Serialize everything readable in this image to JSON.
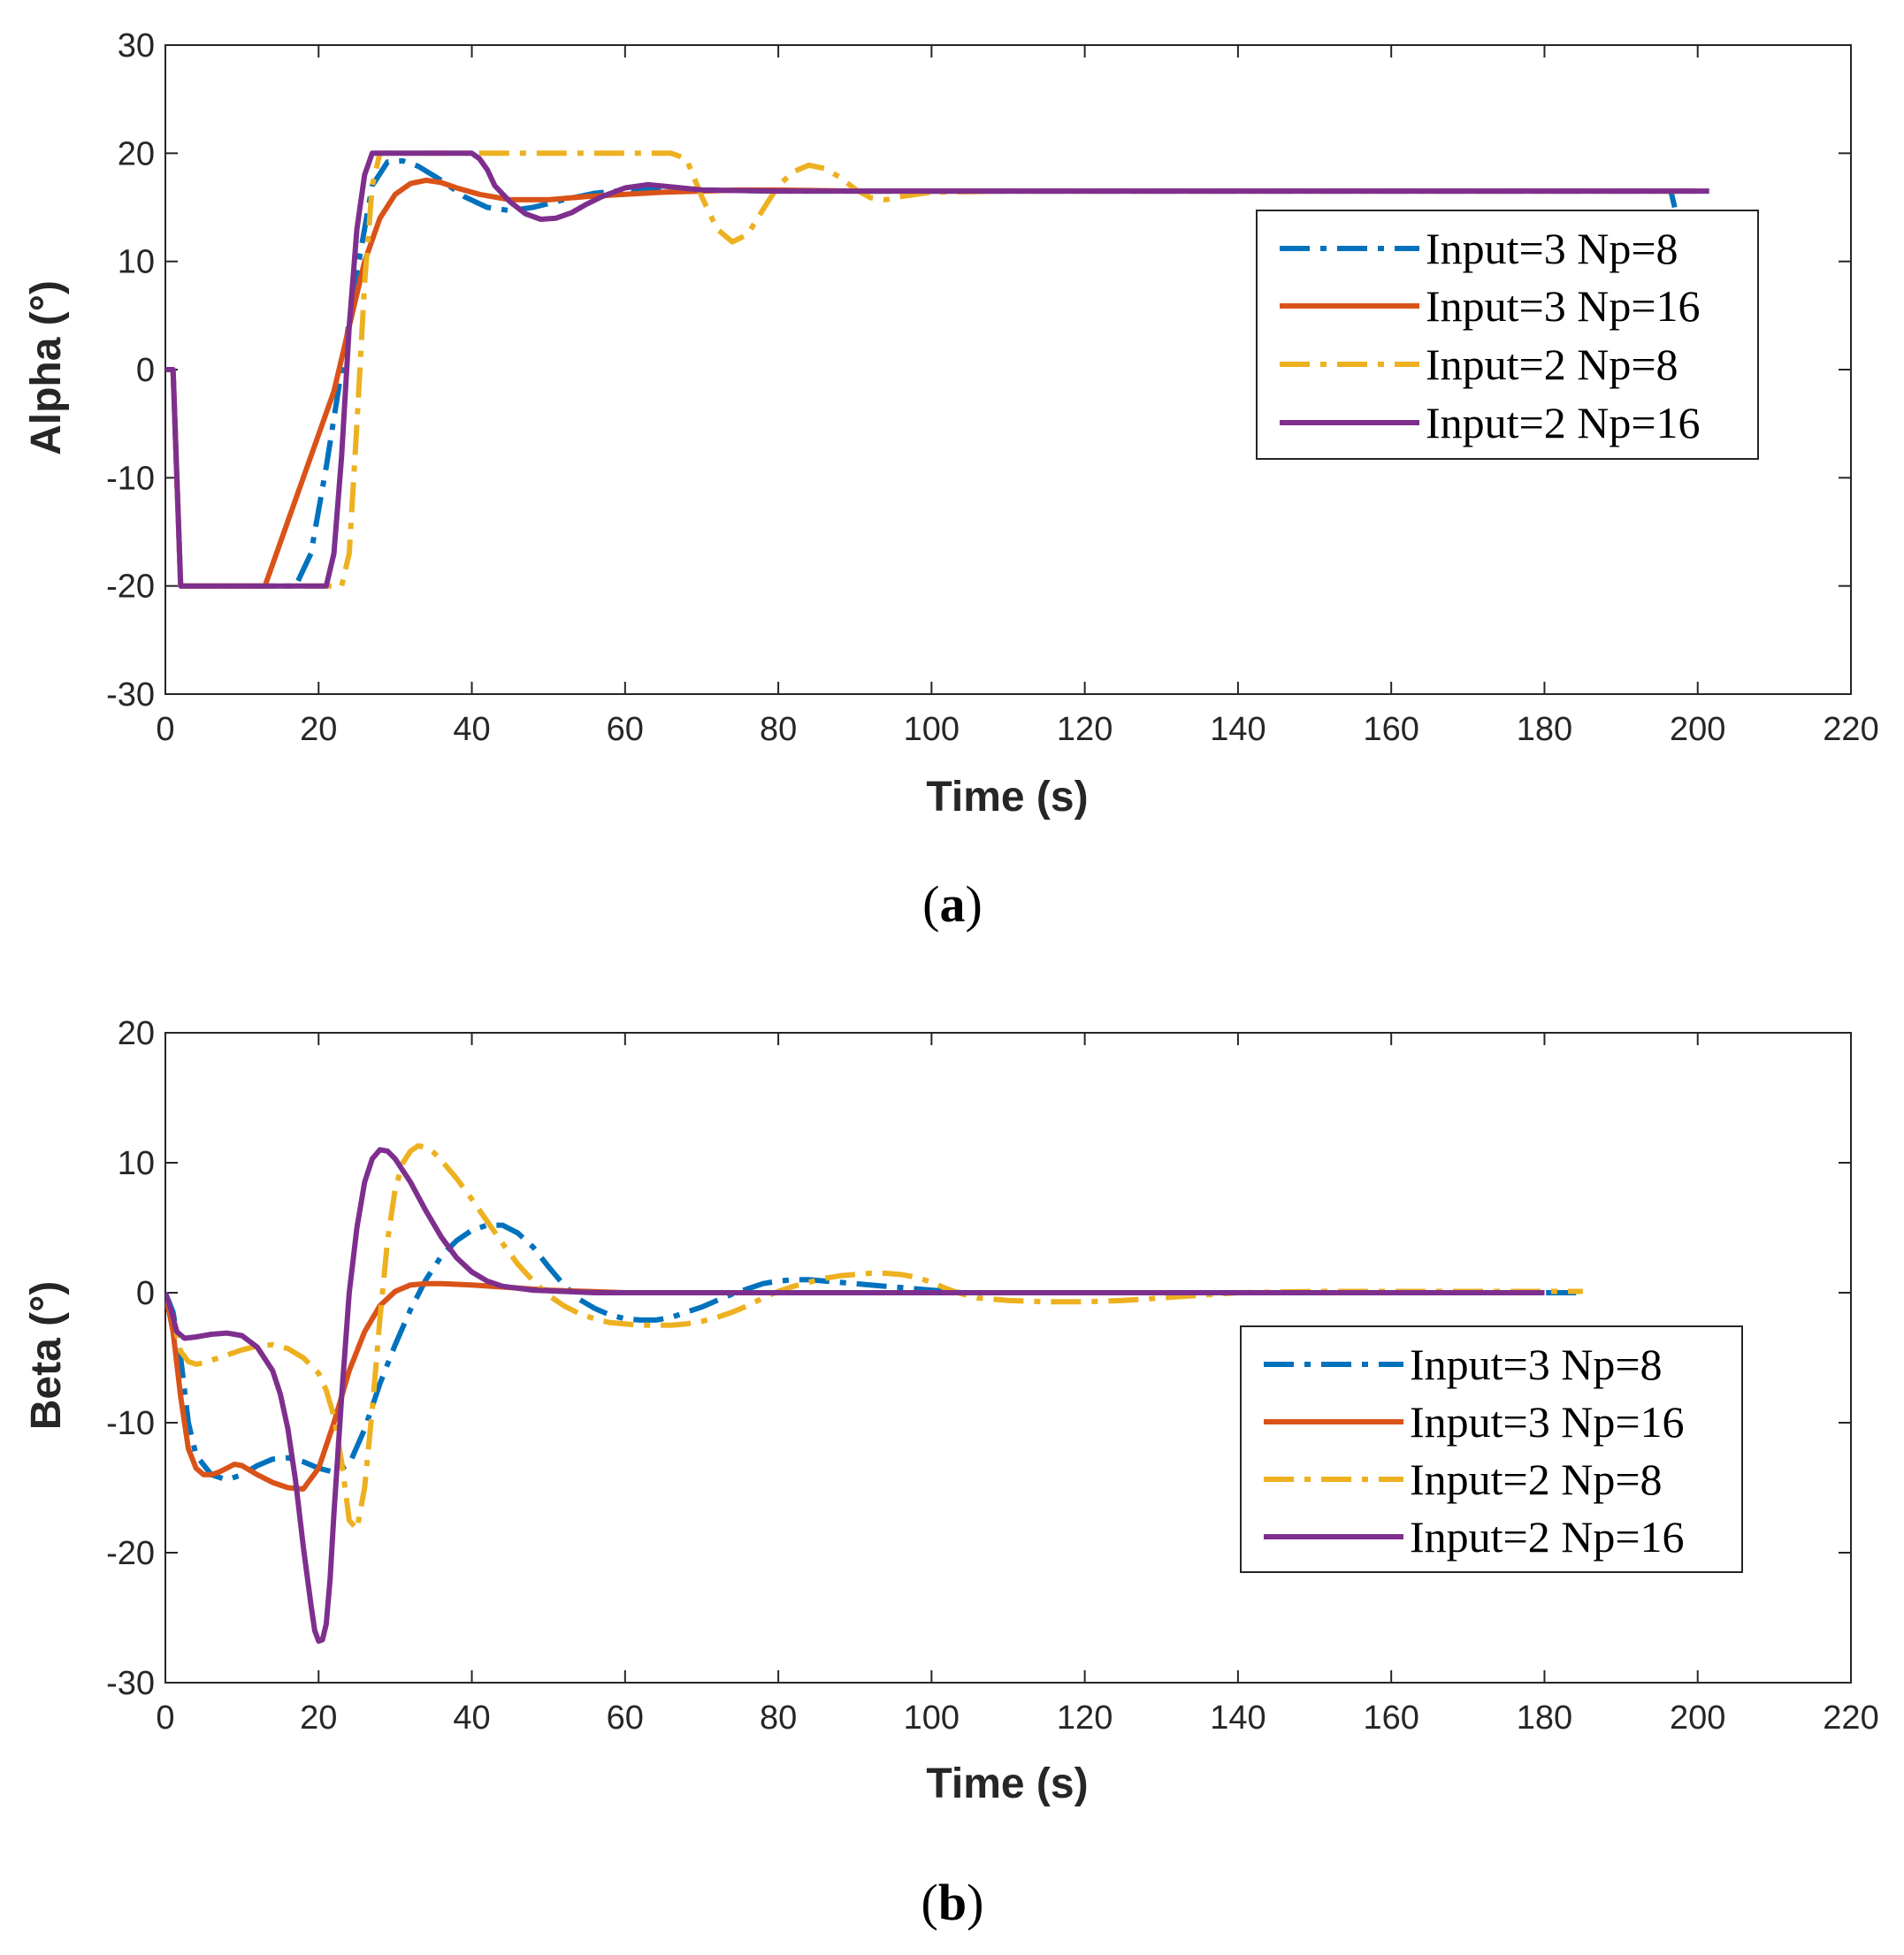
{
  "chart_data": [
    {
      "type": "line",
      "panel": "a",
      "caption": "(a)",
      "caption_letter": "a",
      "xlabel": "Time (s)",
      "ylabel": "Alpha (°)",
      "xlim": [
        0,
        220
      ],
      "ylim": [
        -30,
        30
      ],
      "xticks": [
        0,
        20,
        40,
        60,
        80,
        100,
        120,
        140,
        160,
        180,
        200,
        220
      ],
      "yticks": [
        -30,
        -20,
        -10,
        0,
        10,
        20,
        30
      ],
      "grid": false,
      "legend_position": "top-right",
      "series": [
        {
          "name": "Input=3 Np=8",
          "color": "#0072BD",
          "style": "dashdot",
          "x": [
            0,
            1,
            2,
            17,
            19,
            21,
            23,
            25,
            27,
            29,
            31,
            33,
            36,
            39,
            42,
            45,
            48,
            52,
            56,
            60,
            65,
            70,
            80,
            100,
            150,
            196.5,
            197
          ],
          "y": [
            0,
            0,
            -20,
            -20,
            -17,
            -9,
            0,
            9,
            17,
            19.2,
            19.3,
            18.8,
            17.5,
            16,
            15,
            14.7,
            15,
            15.7,
            16.3,
            16.6,
            16.7,
            16.6,
            16.5,
            16.5,
            16.5,
            16.5,
            15
          ]
        },
        {
          "name": "Input=3 Np=16",
          "color": "#D95319",
          "style": "solid",
          "x": [
            0,
            1,
            2,
            13,
            16,
            19,
            22,
            24,
            26,
            28,
            30,
            32,
            34,
            36,
            38,
            41,
            45,
            50,
            55,
            60,
            65,
            70,
            75,
            80,
            90,
            100,
            150,
            200
          ],
          "y": [
            0,
            0,
            -20,
            -20,
            -14,
            -8,
            -2,
            4,
            10,
            14,
            16.2,
            17.2,
            17.5,
            17.3,
            16.8,
            16.2,
            15.7,
            15.7,
            16,
            16.2,
            16.4,
            16.5,
            16.6,
            16.6,
            16.5,
            16.5,
            16.5,
            16.5
          ]
        },
        {
          "name": "Input=2 Np=8",
          "color": "#EDB120",
          "style": "dashdot",
          "x": [
            0,
            1,
            2,
            23,
            24,
            25,
            26,
            27,
            28,
            40,
            50,
            60,
            66,
            68,
            70,
            72,
            74,
            76,
            78,
            80,
            82,
            84,
            86,
            88,
            90,
            92,
            94,
            96,
            100,
            110,
            150,
            200
          ],
          "y": [
            0,
            0,
            -20,
            -20,
            -17,
            -5,
            8,
            17,
            20,
            20,
            20,
            20,
            20,
            19.5,
            16,
            13,
            11.8,
            12.5,
            14.8,
            17,
            18.3,
            18.9,
            18.6,
            17.8,
            16.7,
            15.9,
            15.7,
            16,
            16.4,
            16.5,
            16.5,
            16.5
          ]
        },
        {
          "name": "Input=2 Np=16",
          "color": "#7E2F8E",
          "style": "solid",
          "x": [
            0,
            1,
            2,
            21,
            22,
            23,
            24,
            25,
            26,
            27,
            40,
            41,
            42,
            43,
            45,
            47,
            49,
            51,
            53,
            55,
            57,
            60,
            63,
            66,
            70,
            80,
            100,
            150,
            201.5
          ],
          "y": [
            0,
            0,
            -20,
            -20,
            -17,
            -8,
            4,
            13,
            18,
            20,
            20,
            19.5,
            18.5,
            17,
            15.5,
            14.4,
            13.9,
            14,
            14.5,
            15.3,
            16,
            16.8,
            17.1,
            16.9,
            16.6,
            16.5,
            16.5,
            16.5,
            16.5
          ]
        }
      ]
    },
    {
      "type": "line",
      "panel": "b",
      "caption": "(b)",
      "caption_letter": "b",
      "xlabel": "Time (s)",
      "ylabel": "Beta (°)",
      "xlim": [
        0,
        220
      ],
      "ylim": [
        -30,
        20
      ],
      "xticks": [
        0,
        20,
        40,
        60,
        80,
        100,
        120,
        140,
        160,
        180,
        200,
        220
      ],
      "yticks": [
        -30,
        -20,
        -10,
        0,
        10,
        20
      ],
      "grid": false,
      "legend_position": "bottom-right",
      "series": [
        {
          "name": "Input=3 Np=8",
          "color": "#0072BD",
          "style": "dashdot",
          "x": [
            0,
            1,
            2,
            3,
            4,
            6,
            8,
            10,
            12,
            14,
            16,
            18,
            20,
            22,
            24,
            26,
            28,
            30,
            32,
            34,
            36,
            38,
            40,
            42,
            44,
            46,
            48,
            50,
            52,
            54,
            56,
            58,
            60,
            62,
            64,
            66,
            68,
            70,
            72,
            74,
            76,
            78,
            80,
            82,
            84,
            86,
            88,
            90,
            92,
            94,
            96,
            98,
            100,
            102,
            104,
            110,
            120,
            150,
            185
          ],
          "y": [
            0,
            -1.5,
            -5,
            -10,
            -12.5,
            -14,
            -14.4,
            -14,
            -13.3,
            -12.8,
            -12.7,
            -13,
            -13.5,
            -13.8,
            -13.2,
            -10.5,
            -7,
            -4,
            -1.3,
            1,
            2.8,
            4,
            4.8,
            5.2,
            5.2,
            4.6,
            3.5,
            2,
            0.6,
            -0.5,
            -1.2,
            -1.7,
            -2,
            -2.1,
            -2.1,
            -1.9,
            -1.5,
            -1.1,
            -0.6,
            -0.1,
            0.3,
            0.7,
            0.9,
            1,
            1,
            0.9,
            0.8,
            0.7,
            0.6,
            0.5,
            0.4,
            0.3,
            0.2,
            0.1,
            0,
            0,
            0,
            0,
            0
          ]
        },
        {
          "name": "Input=3 Np=16",
          "color": "#D95319",
          "style": "solid",
          "x": [
            0,
            1,
            2,
            3,
            4,
            5,
            6,
            7,
            8,
            9,
            10,
            12,
            14,
            16,
            18,
            20,
            22,
            24,
            26,
            28,
            30,
            32,
            34,
            36,
            40,
            45,
            50,
            55,
            60,
            80,
            100,
            150,
            180
          ],
          "y": [
            0,
            -3,
            -8,
            -12,
            -13.5,
            -14,
            -14,
            -13.8,
            -13.5,
            -13.2,
            -13.3,
            -14,
            -14.6,
            -15,
            -15.1,
            -13.5,
            -10,
            -6,
            -3,
            -1,
            0.1,
            0.6,
            0.7,
            0.7,
            0.6,
            0.4,
            0.2,
            0.1,
            0,
            0,
            0,
            0,
            0
          ]
        },
        {
          "name": "Input=2 Np=8",
          "color": "#EDB120",
          "style": "dashdot",
          "x": [
            0,
            1,
            2,
            3,
            4,
            5,
            6,
            8,
            10,
            12,
            14,
            16,
            18,
            20,
            21,
            22,
            23,
            24,
            25,
            26,
            27,
            28,
            29,
            30,
            31,
            32,
            33,
            34,
            35,
            36,
            38,
            40,
            42,
            44,
            46,
            48,
            50,
            52,
            54,
            56,
            58,
            60,
            62,
            64,
            66,
            68,
            70,
            72,
            74,
            76,
            78,
            80,
            82,
            84,
            86,
            88,
            90,
            92,
            94,
            96,
            98,
            100,
            102,
            104,
            106,
            110,
            115,
            120,
            125,
            130,
            135,
            140,
            150,
            170,
            185
          ],
          "y": [
            0,
            -2,
            -4.5,
            -5.3,
            -5.5,
            -5.4,
            -5.2,
            -4.8,
            -4.4,
            -4.1,
            -4,
            -4.3,
            -5,
            -6.2,
            -7.5,
            -9.5,
            -13,
            -17.5,
            -18.2,
            -15,
            -9,
            -2,
            4,
            8,
            10,
            10.9,
            11.3,
            11.2,
            10.8,
            10.2,
            8.8,
            7.2,
            5.5,
            3.8,
            2.2,
            0.9,
            -0.2,
            -1,
            -1.6,
            -2,
            -2.3,
            -2.4,
            -2.5,
            -2.5,
            -2.5,
            -2.4,
            -2.2,
            -1.9,
            -1.5,
            -1,
            -0.4,
            0.1,
            0.5,
            0.8,
            1.1,
            1.3,
            1.4,
            1.5,
            1.5,
            1.4,
            1.2,
            0.8,
            0.3,
            -0.1,
            -0.4,
            -0.6,
            -0.7,
            -0.7,
            -0.6,
            -0.4,
            -0.2,
            0,
            0.1,
            0.1,
            0.1
          ]
        },
        {
          "name": "Input=2 Np=16",
          "color": "#7E2F8E",
          "style": "solid",
          "x": [
            0,
            0.8,
            1.5,
            2.5,
            4,
            6,
            8,
            10,
            12,
            14,
            15,
            16,
            17,
            18,
            19,
            19.5,
            20,
            20.5,
            21,
            21.5,
            22,
            23,
            24,
            25,
            26,
            27,
            28,
            29,
            30,
            32,
            34,
            36,
            38,
            40,
            42,
            44,
            48,
            52,
            56,
            60,
            80,
            100,
            150,
            180
          ],
          "y": [
            0,
            -1.5,
            -3,
            -3.5,
            -3.4,
            -3.2,
            -3.1,
            -3.3,
            -4.2,
            -6,
            -7.8,
            -10.5,
            -14.5,
            -19.5,
            -24,
            -26,
            -26.8,
            -26.7,
            -25.5,
            -22,
            -17,
            -8,
            0,
            5,
            8.5,
            10.3,
            11,
            10.9,
            10.3,
            8.5,
            6.3,
            4.3,
            2.7,
            1.6,
            0.9,
            0.5,
            0.2,
            0.1,
            0,
            0,
            0,
            0,
            0,
            0
          ]
        }
      ]
    }
  ]
}
